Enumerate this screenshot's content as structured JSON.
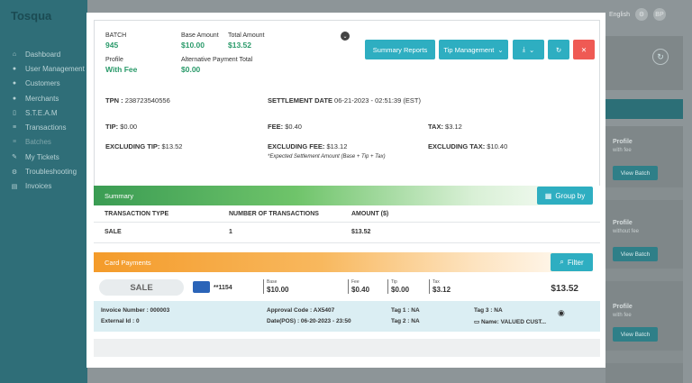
{
  "background": {
    "logo": "Tosqua",
    "nav": [
      {
        "icon": "home",
        "label": "Dashboard"
      },
      {
        "icon": "user",
        "label": "User Management"
      },
      {
        "icon": "users",
        "label": "Customers"
      },
      {
        "icon": "merchant",
        "label": "Merchants"
      },
      {
        "icon": "steam",
        "label": "S.T.E.A.M"
      },
      {
        "icon": "db",
        "label": "Transactions"
      },
      {
        "icon": "batch",
        "label": "Batches"
      },
      {
        "icon": "ticket",
        "label": "My Tickets"
      },
      {
        "icon": "tools",
        "label": "Troubleshooting"
      },
      {
        "icon": "invoice",
        "label": "Invoices"
      }
    ],
    "language": "English",
    "avatar": "BP",
    "cards": [
      {
        "title": "Profile",
        "sub": "with fee",
        "button": "View Batch"
      },
      {
        "title": "Profile",
        "sub": "without fee",
        "button": "View Batch"
      },
      {
        "title": "Profile",
        "sub": "with fee",
        "button": "View Batch"
      }
    ]
  },
  "summary": {
    "batch_label": "BATCH",
    "batch_value": "945",
    "base_label": "Base Amount",
    "base_value": "$10.00",
    "total_label": "Total Amount",
    "total_value": "$13.52",
    "profile_label": "Profile",
    "profile_value": "With Fee",
    "alt_label": "Alternative Payment Total",
    "alt_value": "$0.00",
    "buttons": {
      "summary_reports": "Summary Reports",
      "tip_management": "Tip Management"
    },
    "tpn_label": "TPN :",
    "tpn_value": "238723540556",
    "settlement_label": "SETTLEMENT DATE",
    "settlement_value": "06-21-2023 - 02:51:39 (EST)",
    "tip_label": "TIP:",
    "tip_value": "$0.00",
    "fee_label": "FEE:",
    "fee_value": "$0.40",
    "tax_label": "TAX:",
    "tax_value": "$3.12",
    "ex_tip_label": "EXCLUDING TIP:",
    "ex_tip_value": "$13.52",
    "ex_fee_label": "EXCLUDING FEE:",
    "ex_fee_value": "$13.12",
    "ex_tax_label": "EXCLUDING TAX:",
    "ex_tax_value": "$10.40",
    "note": "*Expected Settlement Amount (Base + Tip + Tax)"
  },
  "summary_section": {
    "title": "Summary",
    "group_by": "Group by",
    "headers": [
      "TRANSACTION TYPE",
      "NUMBER OF TRANSACTIONS",
      "AMOUNT ($)"
    ],
    "row": [
      "SALE",
      "1",
      "$13.52"
    ]
  },
  "card_payments": {
    "title": "Card Payments",
    "filter": "Filter",
    "transaction": {
      "type": "SALE",
      "card": "**1154",
      "base_label": "Base",
      "base": "$10.00",
      "fee_label": "Fee",
      "fee": "$0.40",
      "tip_label": "Tip",
      "tip": "$0.00",
      "tax_label": "Tax",
      "tax": "$3.12",
      "total": "$13.52"
    },
    "details": {
      "invoice": "Invoice Number : 000003",
      "external": "External Id : 0",
      "approval": "Approval Code : AX5407",
      "date": "Date(POS) : 06-20-2023 - 23:50",
      "tag1": "Tag 1 : NA",
      "tag2": "Tag 2 : NA",
      "tag3": "Tag 3 : NA",
      "name": "Name:  VALUED CUST..."
    }
  },
  "colors": {
    "accent": "#2eaec1",
    "danger": "#ef5a54",
    "green": "#2a9a6a"
  }
}
